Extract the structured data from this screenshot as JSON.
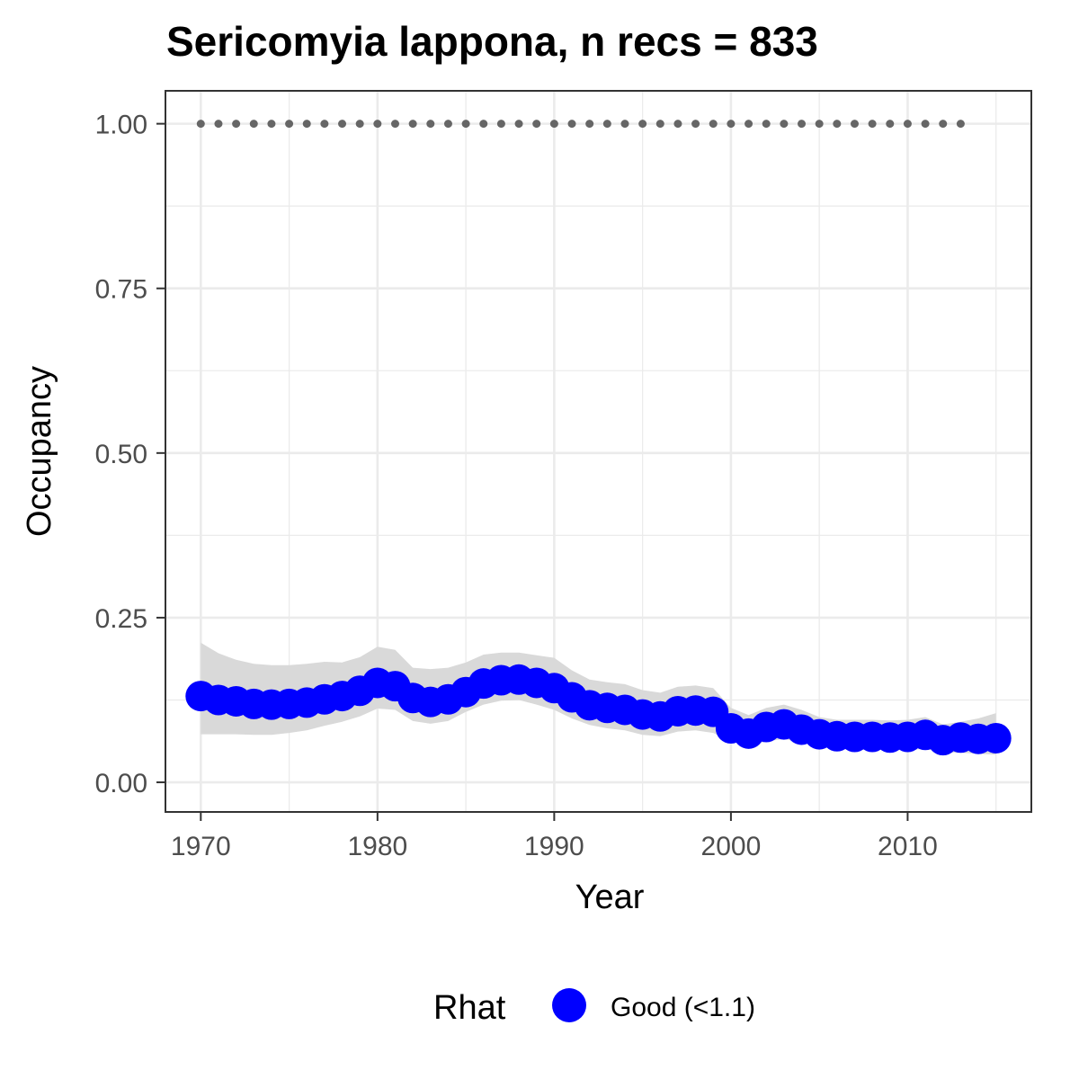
{
  "chart_data": {
    "type": "line",
    "title": "Sericomyia lappona, n recs = 833",
    "xlabel": "Year",
    "ylabel": "Occupancy",
    "xlim": [
      1968,
      2017
    ],
    "ylim": [
      -0.045,
      1.05
    ],
    "x_ticks": [
      1970,
      1980,
      1990,
      2000,
      2010
    ],
    "x_tick_labels": [
      "1970",
      "1980",
      "1990",
      "2000",
      "2010"
    ],
    "y_ticks": [
      0,
      0.25,
      0.5,
      0.75,
      1.0
    ],
    "y_tick_labels": [
      "0.00",
      "0.25",
      "0.50",
      "0.75",
      "1.00"
    ],
    "grid": true,
    "legend": {
      "position": "bottom",
      "title": "Rhat",
      "entries": [
        {
          "label": "Good (<1.1)",
          "color": "#0000ff"
        }
      ]
    },
    "colors": {
      "points": "#0000ff",
      "ribbon": "#d9d9d9",
      "reference": "#666666",
      "panel_border": "#333333",
      "grid": "#ebebeb"
    },
    "series": [
      {
        "x": [
          1970,
          1971,
          1972,
          1973,
          1974,
          1975,
          1976,
          1977,
          1978,
          1979,
          1980,
          1981,
          1982,
          1983,
          1984,
          1985,
          1986,
          1987,
          1988,
          1989,
          1990,
          1991,
          1992,
          1993,
          1994,
          1995,
          1996,
          1997,
          1998,
          1999,
          2000,
          2001,
          2002,
          2003,
          2004,
          2005,
          2006,
          2007,
          2008,
          2009,
          2010,
          2011,
          2012,
          2013,
          2014,
          2015
        ],
        "y": [
          0.131,
          0.125,
          0.123,
          0.119,
          0.118,
          0.119,
          0.121,
          0.126,
          0.131,
          0.139,
          0.151,
          0.146,
          0.128,
          0.122,
          0.126,
          0.137,
          0.15,
          0.155,
          0.156,
          0.151,
          0.143,
          0.129,
          0.117,
          0.113,
          0.11,
          0.103,
          0.1,
          0.108,
          0.109,
          0.107,
          0.082,
          0.074,
          0.084,
          0.088,
          0.08,
          0.073,
          0.07,
          0.069,
          0.069,
          0.068,
          0.069,
          0.072,
          0.064,
          0.068,
          0.066,
          0.067
        ],
        "lower": [
          0.073,
          0.073,
          0.073,
          0.072,
          0.072,
          0.075,
          0.079,
          0.086,
          0.092,
          0.1,
          0.112,
          0.11,
          0.093,
          0.089,
          0.093,
          0.107,
          0.118,
          0.124,
          0.125,
          0.118,
          0.11,
          0.097,
          0.087,
          0.082,
          0.079,
          0.072,
          0.07,
          0.077,
          0.079,
          0.075,
          0.062,
          0.056,
          0.062,
          0.066,
          0.06,
          0.054,
          0.051,
          0.05,
          0.05,
          0.049,
          0.049,
          0.051,
          0.045,
          0.045,
          0.043,
          0.042
        ],
        "upper": [
          0.212,
          0.196,
          0.186,
          0.18,
          0.178,
          0.178,
          0.18,
          0.183,
          0.182,
          0.19,
          0.206,
          0.201,
          0.174,
          0.172,
          0.174,
          0.182,
          0.194,
          0.197,
          0.197,
          0.193,
          0.189,
          0.17,
          0.156,
          0.152,
          0.149,
          0.14,
          0.136,
          0.145,
          0.147,
          0.143,
          0.113,
          0.102,
          0.113,
          0.118,
          0.11,
          0.099,
          0.095,
          0.095,
          0.095,
          0.094,
          0.095,
          0.099,
          0.088,
          0.092,
          0.097,
          0.105
        ]
      },
      {
        "x": [
          1970,
          1971,
          1972,
          1973,
          1974,
          1975,
          1976,
          1977,
          1978,
          1979,
          1980,
          1981,
          1982,
          1983,
          1984,
          1985,
          1986,
          1987,
          1988,
          1989,
          1990,
          1991,
          1992,
          1993,
          1994,
          1995,
          1996,
          1997,
          1998,
          1999,
          2000,
          2001,
          2002,
          2003,
          2004,
          2005,
          2006,
          2007,
          2008,
          2009,
          2010,
          2011,
          2012,
          2013
        ],
        "y": [
          1,
          1,
          1,
          1,
          1,
          1,
          1,
          1,
          1,
          1,
          1,
          1,
          1,
          1,
          1,
          1,
          1,
          1,
          1,
          1,
          1,
          1,
          1,
          1,
          1,
          1,
          1,
          1,
          1,
          1,
          1,
          1,
          1,
          1,
          1,
          1,
          1,
          1,
          1,
          1,
          1,
          1,
          1,
          1
        ]
      }
    ]
  }
}
